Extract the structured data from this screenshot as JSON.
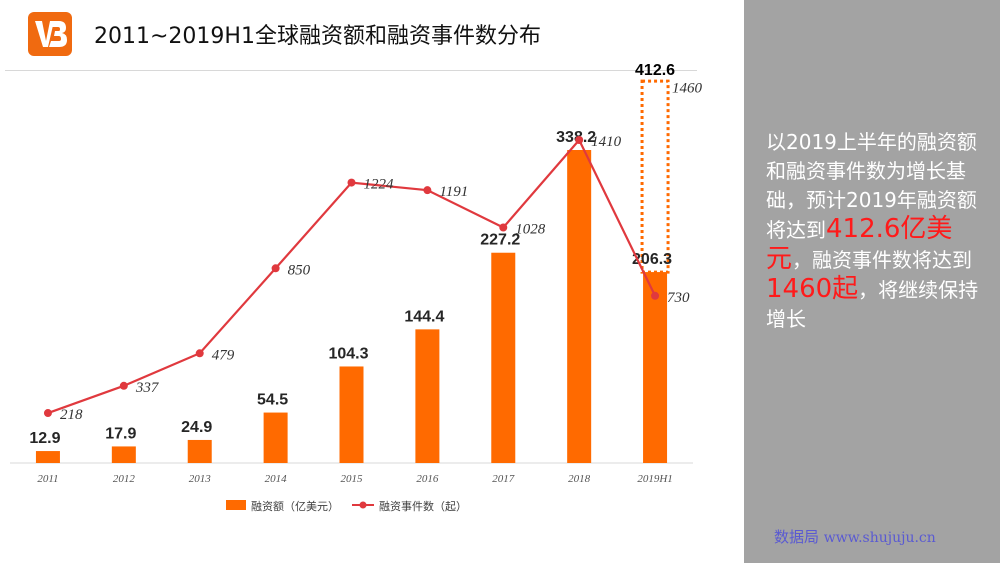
{
  "title": "2011~2019H1全球融资额和融资事件数分布",
  "brand": {
    "logo_color": "#f06a10"
  },
  "colors": {
    "bar": "#ff6a00",
    "line": "#e0393e",
    "projection": "#ff6a00"
  },
  "side_panel": {
    "text_1": "以2019上半年的融资额和融资事件数为增长基础，预计2019年融资额将达到",
    "highlight_1": "412.6亿美元",
    "text_2": "，融资事件数将达到",
    "highlight_2": "1460起",
    "text_3": "，将继续保持增长"
  },
  "watermark": {
    "name": "数据局",
    "url": "www.shujuju.cn"
  },
  "chart_data": {
    "type": "bar",
    "categories": [
      "2011",
      "2012",
      "2013",
      "2014",
      "2015",
      "2016",
      "2017",
      "2018",
      "2019H1"
    ],
    "series": [
      {
        "name": "融资额（亿美元）",
        "type": "bar",
        "values": [
          12.9,
          17.9,
          24.9,
          54.5,
          104.3,
          144.4,
          227.2,
          338.2,
          206.3
        ],
        "labels": [
          "12.9",
          "17.9",
          "24.9",
          "54.5",
          "104.3",
          "144.4",
          "227.2",
          "338.2",
          "206.3"
        ]
      },
      {
        "name": "融资事件数（起）",
        "type": "line",
        "values": [
          218,
          337,
          479,
          850,
          1224,
          1191,
          1028,
          1410,
          730
        ],
        "labels": [
          "218",
          "337",
          "479",
          "850",
          "1224",
          "1191",
          "1028",
          "1410",
          "730"
        ]
      }
    ],
    "projection": {
      "category": "2019H1",
      "bar_value": 412.6,
      "bar_label": "412.6",
      "line_value": 1460,
      "line_label": "1460"
    },
    "ylim_bar": [
      0,
      420
    ],
    "ylim_line": [
      0,
      1500
    ],
    "legend_position": "bottom",
    "grid": false
  }
}
